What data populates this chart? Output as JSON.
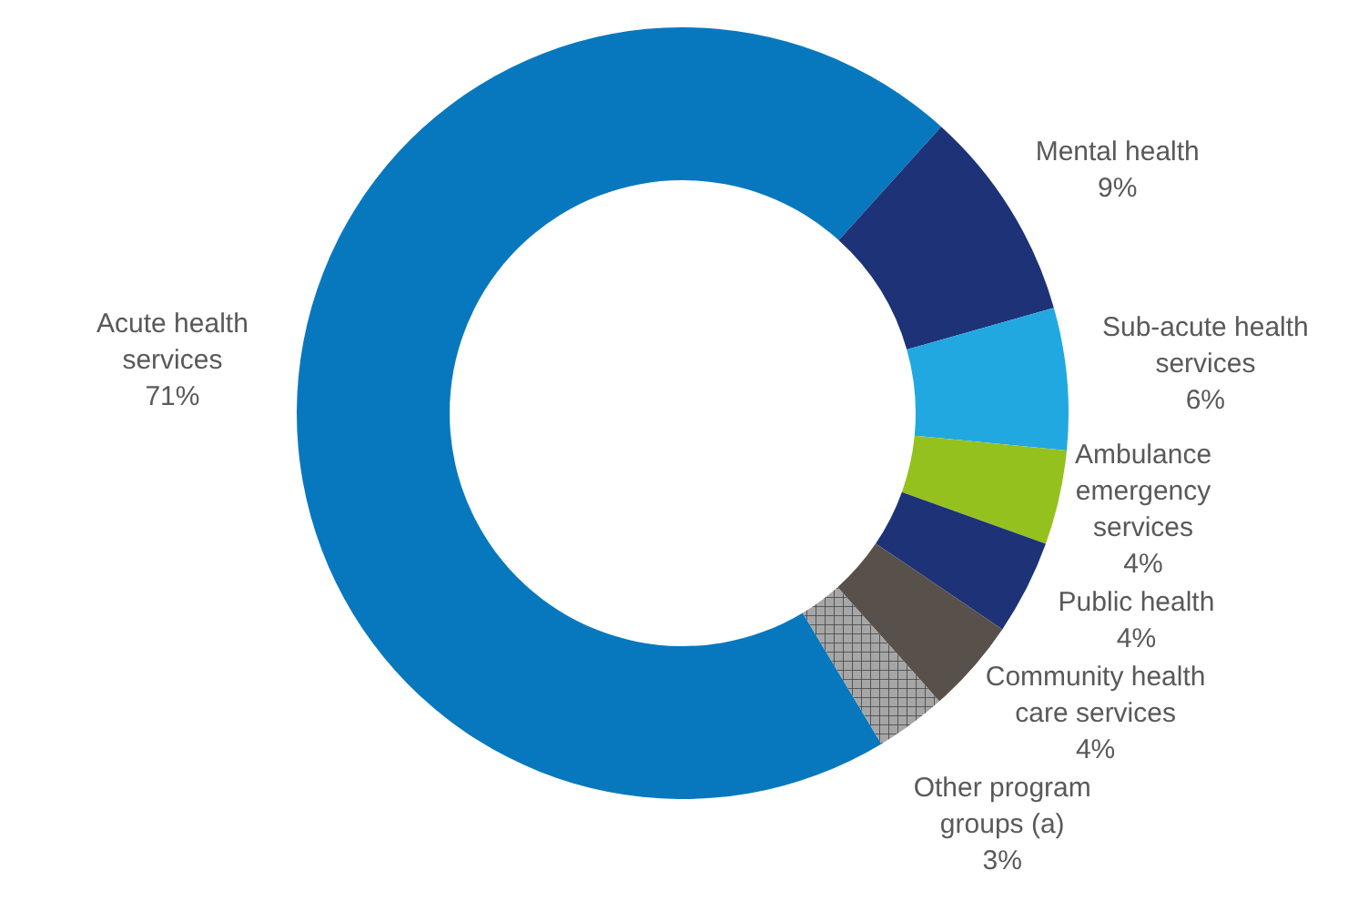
{
  "chart_data": {
    "type": "donut",
    "categories": [
      "Acute health services",
      "Mental health",
      "Sub-acute health services",
      "Ambulance emergency services",
      "Public health",
      "Community health care services",
      "Other program groups (a)"
    ],
    "values": [
      71,
      9,
      6,
      4,
      4,
      4,
      3
    ],
    "value_labels": [
      "71%",
      "9%",
      "6%",
      "4%",
      "4%",
      "4%",
      "3%"
    ],
    "colors": [
      "#0878be",
      "#1e3278",
      "#22a8e0",
      "#95c11f",
      "#1e3278",
      "#58504a",
      "#a6a6a6"
    ],
    "legend": false
  }
}
